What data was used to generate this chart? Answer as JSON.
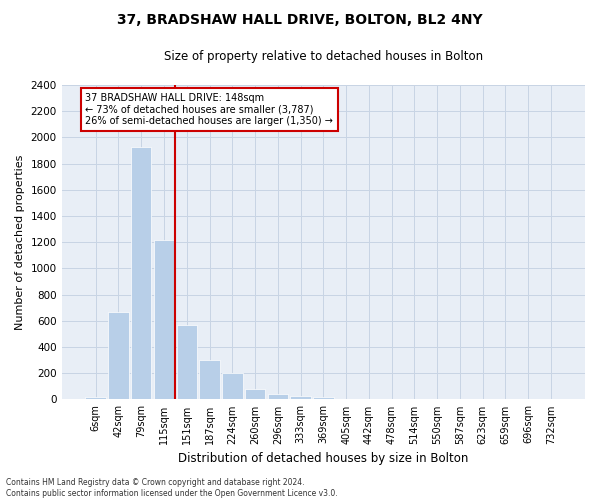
{
  "title_line1": "37, BRADSHAW HALL DRIVE, BOLTON, BL2 4NY",
  "title_line2": "Size of property relative to detached houses in Bolton",
  "xlabel": "Distribution of detached houses by size in Bolton",
  "ylabel": "Number of detached properties",
  "categories": [
    "6sqm",
    "42sqm",
    "79sqm",
    "115sqm",
    "151sqm",
    "187sqm",
    "224sqm",
    "260sqm",
    "296sqm",
    "333sqm",
    "369sqm",
    "405sqm",
    "442sqm",
    "478sqm",
    "514sqm",
    "550sqm",
    "587sqm",
    "623sqm",
    "659sqm",
    "696sqm",
    "732sqm"
  ],
  "values": [
    20,
    670,
    1930,
    1220,
    570,
    300,
    200,
    80,
    45,
    25,
    20,
    0,
    0,
    0,
    0,
    0,
    0,
    0,
    0,
    0,
    0
  ],
  "bar_color": "#b8cfe8",
  "vline_color": "#cc0000",
  "vline_x": 3.5,
  "annotation_line1": "37 BRADSHAW HALL DRIVE: 148sqm",
  "annotation_line2": "← 73% of detached houses are smaller (3,787)",
  "annotation_line3": "26% of semi-detached houses are larger (1,350) →",
  "ylim": [
    0,
    2400
  ],
  "yticks": [
    0,
    200,
    400,
    600,
    800,
    1000,
    1200,
    1400,
    1600,
    1800,
    2000,
    2200,
    2400
  ],
  "footnote_line1": "Contains HM Land Registry data © Crown copyright and database right 2024.",
  "footnote_line2": "Contains public sector information licensed under the Open Government Licence v3.0.",
  "grid_color": "#c8d4e4",
  "background_color": "#e8eef6"
}
